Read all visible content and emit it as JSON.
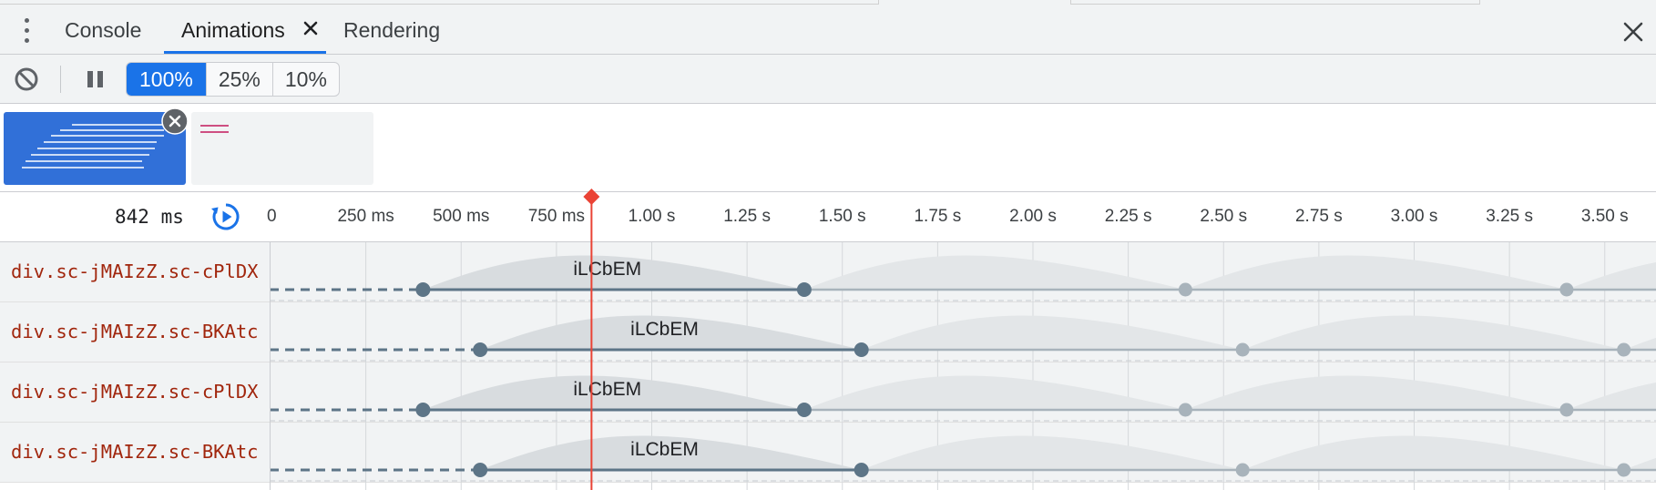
{
  "tabs": {
    "menu_icon": "kebab-menu-icon",
    "items": [
      {
        "label": "Console",
        "active": false
      },
      {
        "label": "Animations",
        "active": true
      },
      {
        "label": "Rendering",
        "active": false
      }
    ],
    "close_panel_icon": "close-icon"
  },
  "toolbar": {
    "clear_icon": "block-icon",
    "pause_icon": "pause-icon",
    "speeds": [
      "100%",
      "25%",
      "10%"
    ],
    "active_speed": "100%"
  },
  "animation_groups": {
    "items": [
      {
        "selected": true
      },
      {
        "selected": false
      }
    ]
  },
  "timeline": {
    "current_time": "842 ms",
    "replay_icon": "replay-icon",
    "ticks": [
      "0",
      "250 ms",
      "500 ms",
      "750 ms",
      "1.00 s",
      "1.25 s",
      "1.50 s",
      "1.75 s",
      "2.00 s",
      "2.25 s",
      "2.50 s",
      "2.75 s",
      "3.00 s",
      "3.25 s",
      "3.50 s"
    ],
    "tick_ms": [
      0,
      250,
      500,
      750,
      1000,
      1250,
      1500,
      1750,
      2000,
      2250,
      2500,
      2750,
      3000,
      3250,
      3500
    ],
    "playhead_ms": 842
  },
  "animations": [
    {
      "element": "div.sc-jMAIzZ.sc-cPlDX",
      "name": "iLCbEM",
      "delay_ms": 400,
      "duration_ms": 1000
    },
    {
      "element": "div.sc-jMAIzZ.sc-BKAtc",
      "name": "iLCbEM",
      "delay_ms": 550,
      "duration_ms": 1000
    },
    {
      "element": "div.sc-jMAIzZ.sc-cPlDX",
      "name": "iLCbEM",
      "delay_ms": 400,
      "duration_ms": 1000
    },
    {
      "element": "div.sc-jMAIzZ.sc-BKAtc",
      "name": "iLCbEM",
      "delay_ms": 550,
      "duration_ms": 1000
    }
  ],
  "colors": {
    "accent": "#1a73e8",
    "playhead": "#ea4335",
    "selector_text": "#a1260d",
    "keyframe": "#5d7587",
    "iteration": "#a8b3bb"
  }
}
